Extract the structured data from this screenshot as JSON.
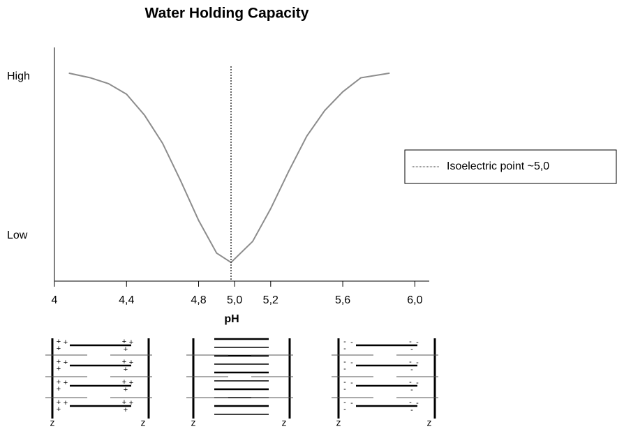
{
  "chart_data": {
    "type": "line",
    "title": "Water Holding Capacity",
    "x_label": "pH",
    "x": [
      4.08,
      4.2,
      4.3,
      4.4,
      4.5,
      4.6,
      4.7,
      4.8,
      4.9,
      4.98,
      5.1,
      5.2,
      5.3,
      5.4,
      5.5,
      5.6,
      5.7,
      5.86
    ],
    "series": [
      {
        "name": "Water Holding Capacity",
        "color": "#8c8c8c",
        "values": [
          0.89,
          0.87,
          0.845,
          0.8,
          0.71,
          0.59,
          0.43,
          0.26,
          0.12,
          0.08,
          0.17,
          0.31,
          0.47,
          0.62,
          0.73,
          0.81,
          0.87,
          0.89
        ]
      }
    ],
    "xlim": [
      4,
      6.08
    ],
    "ylim": [
      0,
      1
    ],
    "xticks": [
      4,
      {
        "value": 4.4,
        "label": "4,4"
      },
      {
        "value": 4.8,
        "label": "4,8"
      },
      {
        "value": 5.0,
        "label": "5,0"
      },
      {
        "value": 5.2,
        "label": "5,2"
      },
      {
        "value": 5.6,
        "label": "5,6"
      },
      {
        "value": 6.0,
        "label": "6,0"
      }
    ],
    "yticks": [
      {
        "value": 0.875,
        "label": "High"
      },
      {
        "value": 0.194,
        "label": "Low"
      }
    ],
    "reference_line": {
      "x": 4.98,
      "name": "Isoelectric point ~5,0",
      "color": "#333333"
    },
    "legend": "right"
  },
  "diagrams": [
    {
      "left": "z",
      "right": "z",
      "charge": "+"
    },
    {
      "left": "z",
      "right": "z",
      "charge": ""
    },
    {
      "left": "z",
      "right": "z",
      "charge": "-"
    }
  ]
}
